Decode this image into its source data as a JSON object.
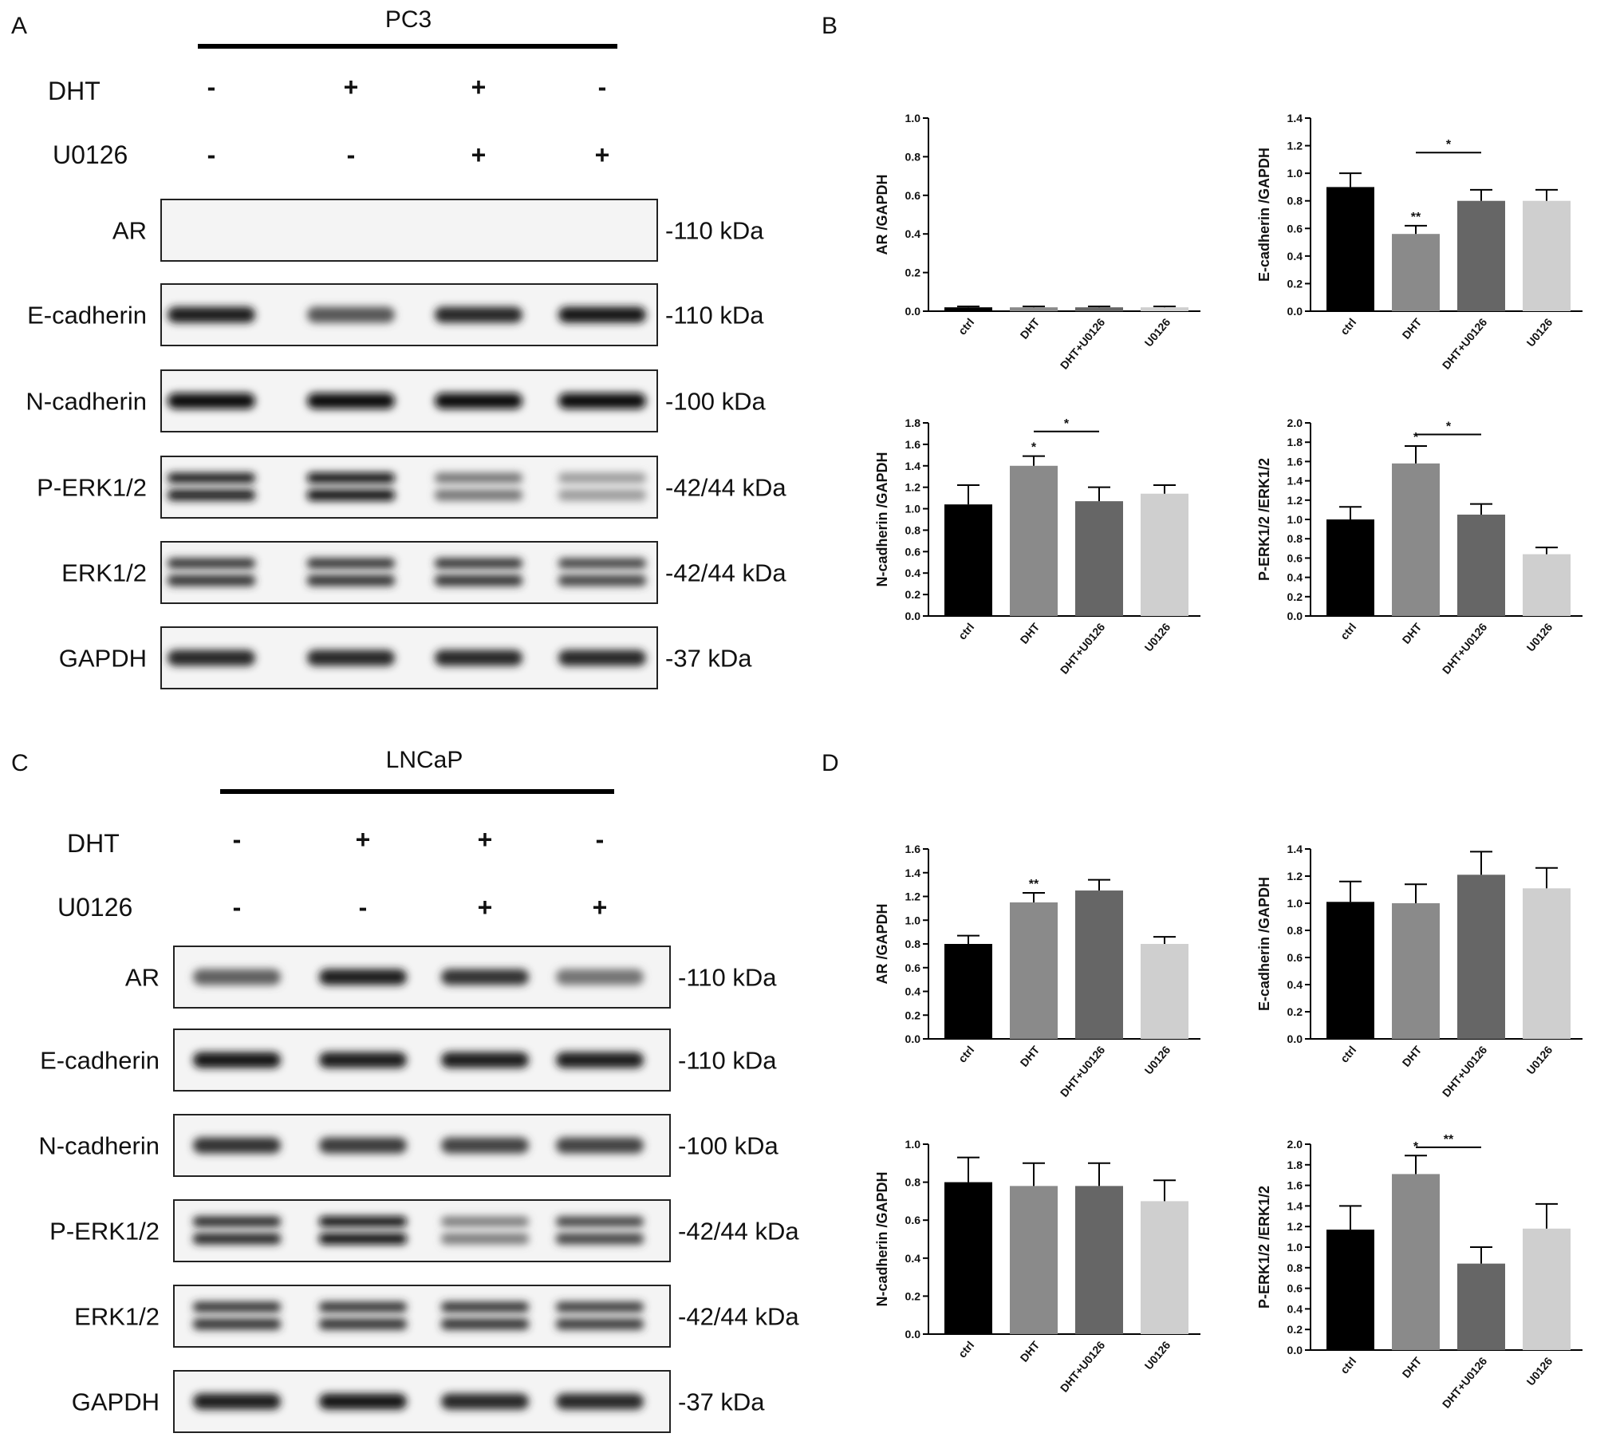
{
  "panels": {
    "A": {
      "letter": "A",
      "cell_line": "PC3",
      "treatments": [
        {
          "name": "DHT",
          "signs": [
            "-",
            "+",
            "+",
            "-"
          ]
        },
        {
          "name": "U0126",
          "signs": [
            "-",
            "-",
            "+",
            "+"
          ]
        }
      ],
      "blots": [
        {
          "name": "AR",
          "kda": "-110 kDa",
          "intensity": [
            0,
            0,
            0,
            0
          ],
          "bands": 1
        },
        {
          "name": "E-cadherin",
          "kda": "-110 kDa",
          "intensity": [
            0.9,
            0.6,
            0.85,
            0.95
          ],
          "bands": 1
        },
        {
          "name": "N-cadherin",
          "kda": "-100 kDa",
          "intensity": [
            1,
            1,
            1,
            1
          ],
          "bands": 1
        },
        {
          "name": "P-ERK1/2",
          "kda": "-42/44 kDa",
          "intensity": [
            0.9,
            1,
            0.45,
            0.25
          ],
          "bands": 2
        },
        {
          "name": "ERK1/2",
          "kda": "-42/44 kDa",
          "intensity": [
            0.8,
            0.8,
            0.8,
            0.7
          ],
          "bands": 2
        },
        {
          "name": "GAPDH",
          "kda": "-37 kDa",
          "intensity": [
            0.85,
            0.85,
            0.85,
            0.85
          ],
          "bands": 1
        }
      ]
    },
    "B": {
      "letter": "B"
    },
    "C": {
      "letter": "C",
      "cell_line": "LNCaP",
      "treatments": [
        {
          "name": "DHT",
          "signs": [
            "-",
            "+",
            "+",
            "-"
          ]
        },
        {
          "name": "U0126",
          "signs": [
            "-",
            "-",
            "+",
            "+"
          ]
        }
      ],
      "blots": [
        {
          "name": "AR",
          "kda": "-110 kDa",
          "intensity": [
            0.55,
            0.9,
            0.8,
            0.45
          ],
          "bands": 1
        },
        {
          "name": "E-cadherin",
          "kda": "-110 kDa",
          "intensity": [
            0.95,
            0.9,
            0.9,
            0.9
          ],
          "bands": 1
        },
        {
          "name": "N-cadherin",
          "kda": "-100 kDa",
          "intensity": [
            0.8,
            0.75,
            0.7,
            0.7
          ],
          "bands": 1
        },
        {
          "name": "P-ERK1/2",
          "kda": "-42/44 kDa",
          "intensity": [
            0.85,
            1,
            0.4,
            0.7
          ],
          "bands": 2
        },
        {
          "name": "ERK1/2",
          "kda": "-42/44 kDa",
          "intensity": [
            0.8,
            0.8,
            0.8,
            0.75
          ],
          "bands": 2
        },
        {
          "name": "GAPDH",
          "kda": "-37 kDa",
          "intensity": [
            0.9,
            0.95,
            0.85,
            0.85
          ],
          "bands": 1
        }
      ]
    },
    "D": {
      "letter": "D"
    }
  },
  "colors": {
    "ctrl": "#000000",
    "DHT": "#8a8a8a",
    "DHT+U0126": "#666666",
    "U0126": "#cfcfcf"
  },
  "chart_data": [
    {
      "id": "B1",
      "panel": "B",
      "type": "bar",
      "categories": [
        "ctrl",
        "DHT",
        "DHT+U0126",
        "U0126"
      ],
      "values": [
        0.02,
        0.02,
        0.02,
        0.02
      ],
      "errors": [
        0.005,
        0.005,
        0.005,
        0.005
      ],
      "ylabel": "AR /GAPDH",
      "ylim": [
        0,
        1.0
      ],
      "yticks": [
        "0.0",
        "0.2",
        "0.4",
        "0.6",
        "0.8",
        "1.0"
      ],
      "star_labels": [],
      "brackets": []
    },
    {
      "id": "B2",
      "panel": "B",
      "type": "bar",
      "categories": [
        "ctrl",
        "DHT",
        "DHT+U0126",
        "U0126"
      ],
      "values": [
        0.9,
        0.56,
        0.8,
        0.8
      ],
      "errors": [
        0.1,
        0.06,
        0.08,
        0.08
      ],
      "ylabel": "E-cadherin /GAPDH",
      "ylim": [
        0,
        1.4
      ],
      "yticks": [
        "0.0",
        "0.2",
        "0.4",
        "0.6",
        "0.8",
        "1.0",
        "1.2",
        "1.4"
      ],
      "star_labels": [
        {
          "bar": 1,
          "text": "**"
        }
      ],
      "brackets": [
        {
          "from": 1,
          "to": 2,
          "y": 1.15,
          "text": "*"
        }
      ]
    },
    {
      "id": "B3",
      "panel": "B",
      "type": "bar",
      "categories": [
        "ctrl",
        "DHT",
        "DHT+U0126",
        "U0126"
      ],
      "values": [
        1.04,
        1.4,
        1.07,
        1.14
      ],
      "errors": [
        0.18,
        0.09,
        0.13,
        0.08
      ],
      "ylabel": "N-cadherin /GAPDH",
      "ylim": [
        0,
        1.8
      ],
      "yticks": [
        "0.0",
        "0.2",
        "0.4",
        "0.6",
        "0.8",
        "1.0",
        "1.2",
        "1.4",
        "1.6",
        "1.8"
      ],
      "star_labels": [
        {
          "bar": 1,
          "text": "*"
        }
      ],
      "brackets": [
        {
          "from": 1,
          "to": 2,
          "y": 1.72,
          "text": "*"
        }
      ]
    },
    {
      "id": "B4",
      "panel": "B",
      "type": "bar",
      "categories": [
        "ctrl",
        "DHT",
        "DHT+U0126",
        "U0126"
      ],
      "values": [
        1.0,
        1.58,
        1.05,
        0.64
      ],
      "errors": [
        0.13,
        0.18,
        0.11,
        0.07
      ],
      "ylabel": "P-ERK1/2 /ERK1/2",
      "ylim": [
        0,
        2.0
      ],
      "yticks": [
        "0.0",
        "0.2",
        "0.4",
        "0.6",
        "0.8",
        "1.0",
        "1.2",
        "1.4",
        "1.6",
        "1.8",
        "2.0"
      ],
      "star_labels": [
        {
          "bar": 1,
          "text": "*"
        }
      ],
      "brackets": [
        {
          "from": 1,
          "to": 2,
          "y": 1.88,
          "text": "*"
        }
      ]
    },
    {
      "id": "D1",
      "panel": "D",
      "type": "bar",
      "categories": [
        "ctrl",
        "DHT",
        "DHT+U0126",
        "U0126"
      ],
      "values": [
        0.8,
        1.15,
        1.25,
        0.8
      ],
      "errors": [
        0.07,
        0.08,
        0.09,
        0.06
      ],
      "ylabel": "AR /GAPDH",
      "ylim": [
        0,
        1.6
      ],
      "yticks": [
        "0.0",
        "0.2",
        "0.4",
        "0.6",
        "0.8",
        "1.0",
        "1.2",
        "1.4",
        "1.6"
      ],
      "star_labels": [
        {
          "bar": 1,
          "text": "**"
        }
      ],
      "brackets": []
    },
    {
      "id": "D2",
      "panel": "D",
      "type": "bar",
      "categories": [
        "ctrl",
        "DHT",
        "DHT+U0126",
        "U0126"
      ],
      "values": [
        1.01,
        1.0,
        1.21,
        1.11
      ],
      "errors": [
        0.15,
        0.14,
        0.17,
        0.15
      ],
      "ylabel": "E-cadherin /GAPDH",
      "ylim": [
        0,
        1.4
      ],
      "yticks": [
        "0.0",
        "0.2",
        "0.4",
        "0.6",
        "0.8",
        "1.0",
        "1.2",
        "1.4"
      ],
      "star_labels": [],
      "brackets": []
    },
    {
      "id": "D3",
      "panel": "D",
      "type": "bar",
      "categories": [
        "ctrl",
        "DHT",
        "DHT+U0126",
        "U0126"
      ],
      "values": [
        0.8,
        0.78,
        0.78,
        0.7
      ],
      "errors": [
        0.13,
        0.12,
        0.12,
        0.11
      ],
      "ylabel": "N-cadherin /GAPDH",
      "ylim": [
        0,
        1.0
      ],
      "yticks": [
        "0.0",
        "0.2",
        "0.4",
        "0.6",
        "0.8",
        "1.0"
      ],
      "star_labels": [],
      "brackets": []
    },
    {
      "id": "D4",
      "panel": "D",
      "type": "bar",
      "categories": [
        "ctrl",
        "DHT",
        "DHT+U0126",
        "U0126"
      ],
      "values": [
        1.17,
        1.71,
        0.84,
        1.18
      ],
      "errors": [
        0.23,
        0.18,
        0.16,
        0.24
      ],
      "ylabel": "P-ERK1/2 /ERK1/2",
      "ylim": [
        0,
        2.0
      ],
      "yticks": [
        "0.0",
        "0.2",
        "0.4",
        "0.6",
        "0.8",
        "1.0",
        "1.2",
        "1.4",
        "1.6",
        "1.8",
        "2.0"
      ],
      "star_labels": [
        {
          "bar": 1,
          "text": "*"
        }
      ],
      "brackets": [
        {
          "from": 1,
          "to": 2,
          "y": 1.97,
          "text": "**"
        }
      ]
    }
  ]
}
